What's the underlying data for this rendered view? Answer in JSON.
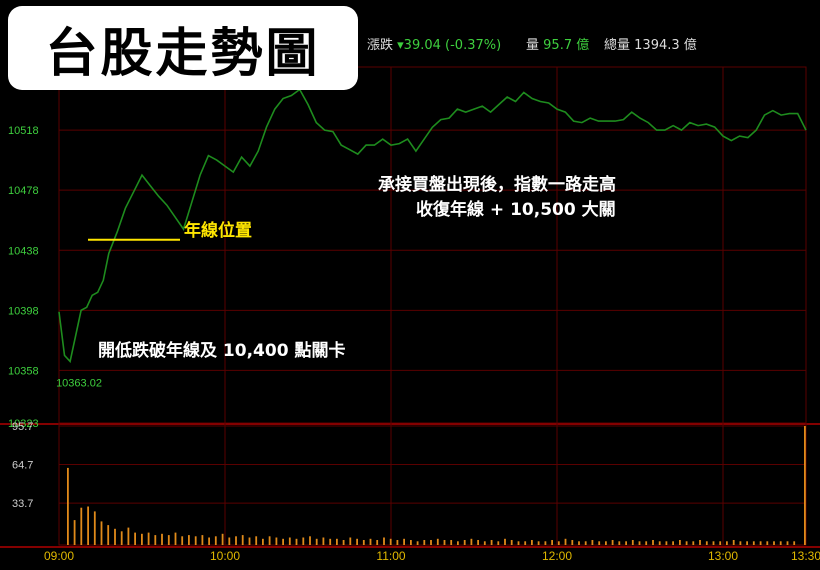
{
  "header": {
    "change_label": "漲跌",
    "change_value": "▾39.04 (-0.37%)",
    "volume_label": "量",
    "volume_value": "95.7 億",
    "total_label": "總量",
    "total_value": "1394.3 億"
  },
  "title_overlay": "台股走勢圖",
  "annotations": {
    "year_line": "年線位置",
    "open_low": "開低跌破年線及 10,400 點關卡",
    "rebound_line1": "承接買盤出現後，指數一路走高",
    "rebound_line2": "收復年線 + 10,500 大關"
  },
  "colors": {
    "price_line": "#1e8c1e",
    "volume_bar": "#e08a1a",
    "grid": "#5a0000",
    "year_line": "#ffe600",
    "axis_text": "#3ecf3e",
    "time_text": "#e0b800"
  },
  "chart_data": [
    {
      "type": "line",
      "ylim": [
        10323,
        10558
      ],
      "y_ticks": [
        10518,
        10478,
        10438,
        10398,
        10358,
        10323
      ],
      "x_ticks": [
        "09:00",
        "10:00",
        "11:00",
        "12:00",
        "13:00",
        "13:30"
      ],
      "low_label": "10363.02",
      "year_line_level": 10445,
      "points": [
        [
          "09:00",
          10397
        ],
        [
          "09:02",
          10368
        ],
        [
          "09:04",
          10364
        ],
        [
          "09:06",
          10381
        ],
        [
          "09:08",
          10398
        ],
        [
          "09:10",
          10400
        ],
        [
          "09:12",
          10408
        ],
        [
          "09:14",
          10410
        ],
        [
          "09:16",
          10418
        ],
        [
          "09:18",
          10436
        ],
        [
          "09:21",
          10450
        ],
        [
          "09:24",
          10466
        ],
        [
          "09:27",
          10477
        ],
        [
          "09:30",
          10488
        ],
        [
          "09:33",
          10481
        ],
        [
          "09:36",
          10474
        ],
        [
          "09:39",
          10468
        ],
        [
          "09:42",
          10460
        ],
        [
          "09:45",
          10452
        ],
        [
          "09:48",
          10470
        ],
        [
          "09:51",
          10488
        ],
        [
          "09:54",
          10501
        ],
        [
          "09:57",
          10498
        ],
        [
          "10:00",
          10494
        ],
        [
          "10:03",
          10490
        ],
        [
          "10:06",
          10500
        ],
        [
          "10:09",
          10494
        ],
        [
          "10:12",
          10504
        ],
        [
          "10:15",
          10520
        ],
        [
          "10:18",
          10532
        ],
        [
          "10:21",
          10539
        ],
        [
          "10:24",
          10541
        ],
        [
          "10:27",
          10545
        ],
        [
          "10:30",
          10535
        ],
        [
          "10:33",
          10523
        ],
        [
          "10:36",
          10518
        ],
        [
          "10:39",
          10517
        ],
        [
          "10:42",
          10508
        ],
        [
          "10:45",
          10505
        ],
        [
          "10:48",
          10502
        ],
        [
          "10:51",
          10508
        ],
        [
          "10:54",
          10508
        ],
        [
          "10:57",
          10512
        ],
        [
          "11:00",
          10508
        ],
        [
          "11:03",
          10509
        ],
        [
          "11:06",
          10512
        ],
        [
          "11:09",
          10504
        ],
        [
          "11:12",
          10512
        ],
        [
          "11:15",
          10520
        ],
        [
          "11:18",
          10525
        ],
        [
          "11:21",
          10526
        ],
        [
          "11:24",
          10532
        ],
        [
          "11:27",
          10530
        ],
        [
          "11:30",
          10532
        ],
        [
          "11:33",
          10534
        ],
        [
          "11:36",
          10530
        ],
        [
          "11:39",
          10535
        ],
        [
          "11:42",
          10540
        ],
        [
          "11:45",
          10537
        ],
        [
          "11:48",
          10543
        ],
        [
          "11:51",
          10539
        ],
        [
          "11:54",
          10537
        ],
        [
          "11:57",
          10536
        ],
        [
          "12:00",
          10532
        ],
        [
          "12:03",
          10530
        ],
        [
          "12:06",
          10524
        ],
        [
          "12:09",
          10523
        ],
        [
          "12:12",
          10526
        ],
        [
          "12:15",
          10524
        ],
        [
          "12:18",
          10524
        ],
        [
          "12:21",
          10524
        ],
        [
          "12:24",
          10525
        ],
        [
          "12:27",
          10530
        ],
        [
          "12:30",
          10526
        ],
        [
          "12:33",
          10523
        ],
        [
          "12:36",
          10518
        ],
        [
          "12:39",
          10518
        ],
        [
          "12:42",
          10521
        ],
        [
          "12:45",
          10518
        ],
        [
          "12:48",
          10523
        ],
        [
          "12:51",
          10521
        ],
        [
          "12:54",
          10522
        ],
        [
          "12:57",
          10520
        ],
        [
          "13:00",
          10514
        ],
        [
          "13:03",
          10511
        ],
        [
          "13:06",
          10514
        ],
        [
          "13:09",
          10513
        ],
        [
          "13:12",
          10518
        ],
        [
          "13:15",
          10528
        ],
        [
          "13:18",
          10531
        ],
        [
          "13:21",
          10528
        ],
        [
          "13:24",
          10529
        ],
        [
          "13:27",
          10529
        ],
        [
          "13:30",
          10518
        ]
      ]
    },
    {
      "type": "bar",
      "ylim": [
        0,
        95.7
      ],
      "y_ticks": [
        95.7,
        64.7,
        33.7
      ],
      "series": [
        {
          "values": [
            62,
            20,
            30,
            31,
            27,
            19,
            16,
            13,
            11,
            14,
            10,
            9,
            10,
            8,
            9,
            8,
            10,
            7,
            8,
            7,
            8,
            6,
            7,
            9,
            6,
            7,
            8,
            6,
            7,
            5,
            7,
            6,
            5,
            6,
            5,
            6,
            7,
            5,
            6,
            5,
            5,
            4,
            6,
            5,
            4,
            5,
            4,
            6,
            5,
            4,
            5,
            4,
            3,
            4,
            4,
            5,
            4,
            4,
            3,
            4,
            5,
            4,
            3,
            4,
            3,
            5,
            4,
            3,
            3,
            4,
            3,
            3,
            4,
            3,
            5,
            4,
            3,
            3,
            4,
            3,
            3,
            4,
            3,
            3,
            4,
            3,
            3,
            4,
            3,
            3,
            3,
            4,
            3,
            3,
            4,
            3,
            3,
            3,
            3,
            4,
            3,
            3,
            3,
            3,
            3,
            3,
            3,
            3,
            3,
            95.7
          ]
        }
      ]
    }
  ]
}
